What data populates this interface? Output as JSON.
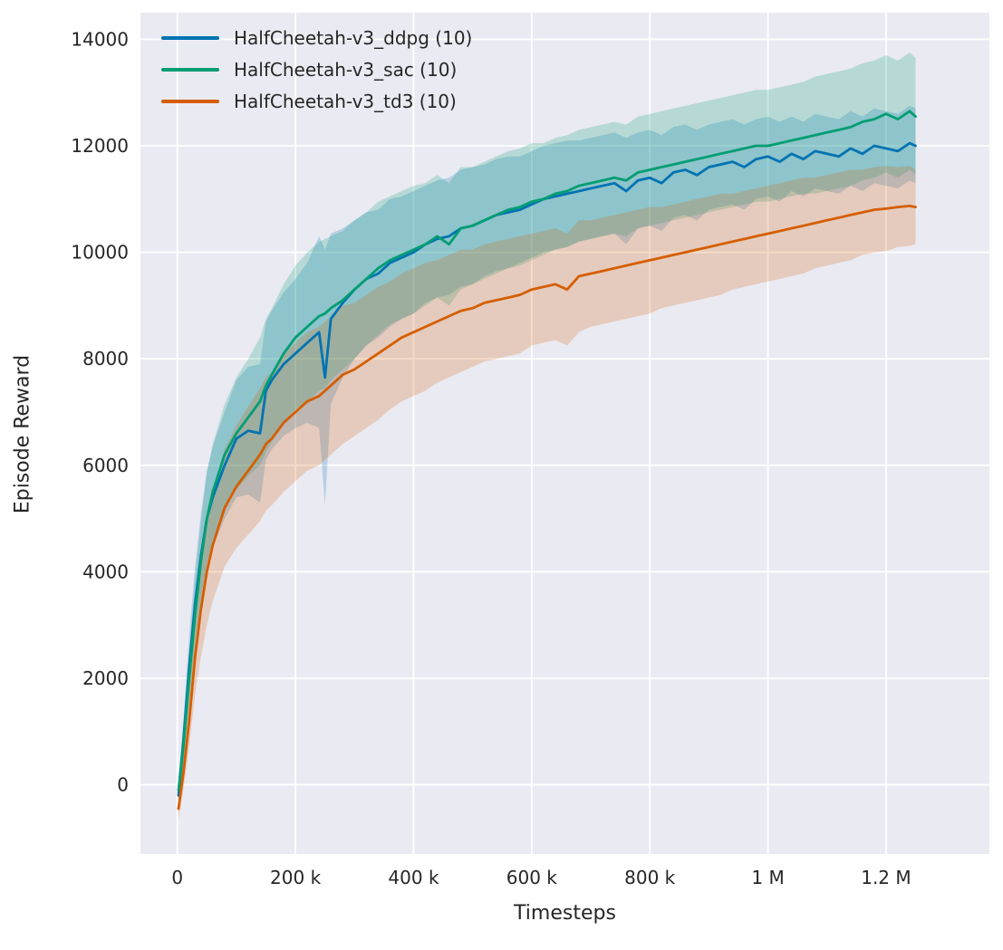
{
  "figure": {
    "background": "#ffffff",
    "axes_background": "#eaeaf2",
    "grid_color": "#ffffff",
    "text_color": "#262626",
    "band_opacity": 0.22
  },
  "chart_data": {
    "type": "line",
    "title": "",
    "xlabel": "Timesteps",
    "ylabel": "Episode Reward",
    "grid": true,
    "legend_position": "upper-left",
    "xlim": [
      -62500,
      1375000
    ],
    "ylim": [
      -1300,
      14500
    ],
    "x_ticks": [
      {
        "value": 0,
        "label": "0"
      },
      {
        "value": 200000,
        "label": "200 k"
      },
      {
        "value": 400000,
        "label": "400 k"
      },
      {
        "value": 600000,
        "label": "600 k"
      },
      {
        "value": 800000,
        "label": "800 k"
      },
      {
        "value": 1000000,
        "label": "1 M"
      },
      {
        "value": 1200000,
        "label": "1.2 M"
      }
    ],
    "y_ticks": [
      {
        "value": 0,
        "label": "0"
      },
      {
        "value": 2000,
        "label": "2000"
      },
      {
        "value": 4000,
        "label": "4000"
      },
      {
        "value": 6000,
        "label": "6000"
      },
      {
        "value": 8000,
        "label": "8000"
      },
      {
        "value": 10000,
        "label": "10000"
      },
      {
        "value": 12000,
        "label": "12000"
      },
      {
        "value": 14000,
        "label": "14000"
      }
    ],
    "x_unit": "timesteps",
    "x_thousands": [
      2,
      10,
      20,
      30,
      40,
      50,
      60,
      80,
      100,
      120,
      140,
      150,
      160,
      180,
      200,
      220,
      240,
      250,
      260,
      280,
      300,
      320,
      340,
      360,
      380,
      400,
      420,
      440,
      460,
      480,
      500,
      520,
      540,
      560,
      580,
      600,
      620,
      640,
      660,
      680,
      700,
      720,
      740,
      760,
      780,
      800,
      820,
      840,
      860,
      880,
      900,
      920,
      940,
      960,
      980,
      1000,
      1020,
      1040,
      1060,
      1080,
      1100,
      1120,
      1140,
      1160,
      1180,
      1200,
      1220,
      1240,
      1250
    ],
    "series": [
      {
        "name": "HalfCheetah-v3_ddpg (10)",
        "color": "#0173b2",
        "mean": [
          -200,
          800,
          2200,
          3400,
          4300,
          5000,
          5400,
          6000,
          6500,
          6650,
          6600,
          7400,
          7600,
          7900,
          8100,
          8300,
          8500,
          7650,
          8750,
          9050,
          9300,
          9500,
          9600,
          9800,
          9900,
          10000,
          10150,
          10250,
          10300,
          10450,
          10500,
          10600,
          10700,
          10750,
          10800,
          10900,
          11000,
          11050,
          11100,
          11150,
          11200,
          11250,
          11300,
          11150,
          11350,
          11400,
          11300,
          11500,
          11550,
          11450,
          11600,
          11650,
          11700,
          11600,
          11750,
          11800,
          11700,
          11850,
          11750,
          11900,
          11850,
          11800,
          11950,
          11850,
          12000,
          11950,
          11900,
          12050,
          12000
        ],
        "band": [
          300,
          400,
          600,
          700,
          800,
          900,
          950,
          1000,
          1100,
          1200,
          1300,
          1300,
          1300,
          1350,
          1400,
          1500,
          1800,
          2400,
          1600,
          1400,
          1300,
          1250,
          1200,
          1200,
          1150,
          1150,
          1100,
          1100,
          1100,
          1100,
          1100,
          1050,
          1050,
          1050,
          1000,
          1000,
          1000,
          1000,
          1000,
          950,
          950,
          950,
          950,
          1000,
          900,
          900,
          900,
          850,
          850,
          850,
          800,
          800,
          800,
          800,
          750,
          750,
          750,
          700,
          700,
          700,
          700,
          700,
          700,
          700,
          700,
          700,
          700,
          700,
          700
        ]
      },
      {
        "name": "HalfCheetah-v3_sac (10)",
        "color": "#029e73",
        "mean": [
          -100,
          700,
          2000,
          3200,
          4200,
          5000,
          5500,
          6200,
          6600,
          6900,
          7200,
          7500,
          7700,
          8100,
          8400,
          8600,
          8800,
          8850,
          8950,
          9100,
          9300,
          9500,
          9700,
          9850,
          9950,
          10050,
          10150,
          10300,
          10150,
          10450,
          10500,
          10600,
          10700,
          10800,
          10850,
          10950,
          11000,
          11100,
          11150,
          11250,
          11300,
          11350,
          11400,
          11350,
          11500,
          11550,
          11600,
          11650,
          11700,
          11750,
          11800,
          11850,
          11900,
          11950,
          12000,
          12000,
          12050,
          12100,
          12150,
          12200,
          12250,
          12300,
          12350,
          12450,
          12500,
          12600,
          12500,
          12650,
          12550
        ],
        "band": [
          250,
          350,
          550,
          650,
          750,
          850,
          900,
          950,
          1050,
          1100,
          1200,
          1250,
          1250,
          1300,
          1350,
          1400,
          1400,
          1400,
          1350,
          1300,
          1300,
          1250,
          1250,
          1200,
          1200,
          1200,
          1150,
          1150,
          1150,
          1150,
          1100,
          1100,
          1100,
          1100,
          1100,
          1100,
          1050,
          1050,
          1050,
          1050,
          1050,
          1050,
          1050,
          1050,
          1050,
          1050,
          1050,
          1050,
          1050,
          1050,
          1050,
          1050,
          1050,
          1050,
          1050,
          1050,
          1050,
          1050,
          1050,
          1100,
          1100,
          1100,
          1100,
          1100,
          1100,
          1100,
          1100,
          1100,
          1100
        ]
      },
      {
        "name": "HalfCheetah-v3_td3 (10)",
        "color": "#d55e00",
        "mean": [
          -450,
          200,
          1200,
          2400,
          3300,
          4000,
          4500,
          5200,
          5600,
          5900,
          6200,
          6400,
          6500,
          6800,
          7000,
          7200,
          7300,
          7400,
          7500,
          7700,
          7800,
          7950,
          8100,
          8250,
          8400,
          8500,
          8600,
          8700,
          8800,
          8900,
          8950,
          9050,
          9100,
          9150,
          9200,
          9300,
          9350,
          9400,
          9300,
          9550,
          9600,
          9650,
          9700,
          9750,
          9800,
          9850,
          9900,
          9950,
          10000,
          10050,
          10100,
          10150,
          10200,
          10250,
          10300,
          10350,
          10400,
          10450,
          10500,
          10550,
          10600,
          10650,
          10700,
          10750,
          10800,
          10820,
          10850,
          10870,
          10850
        ],
        "band": [
          200,
          300,
          500,
          700,
          900,
          1000,
          1050,
          1100,
          1150,
          1200,
          1250,
          1250,
          1250,
          1300,
          1300,
          1300,
          1300,
          1300,
          1300,
          1300,
          1250,
          1250,
          1250,
          1200,
          1200,
          1200,
          1200,
          1150,
          1150,
          1150,
          1100,
          1100,
          1100,
          1100,
          1100,
          1050,
          1050,
          1050,
          1050,
          1050,
          1000,
          1000,
          1000,
          1000,
          1000,
          1000,
          950,
          950,
          950,
          950,
          950,
          950,
          900,
          900,
          900,
          900,
          900,
          900,
          900,
          850,
          850,
          850,
          850,
          800,
          800,
          800,
          750,
          750,
          700
        ]
      }
    ]
  }
}
